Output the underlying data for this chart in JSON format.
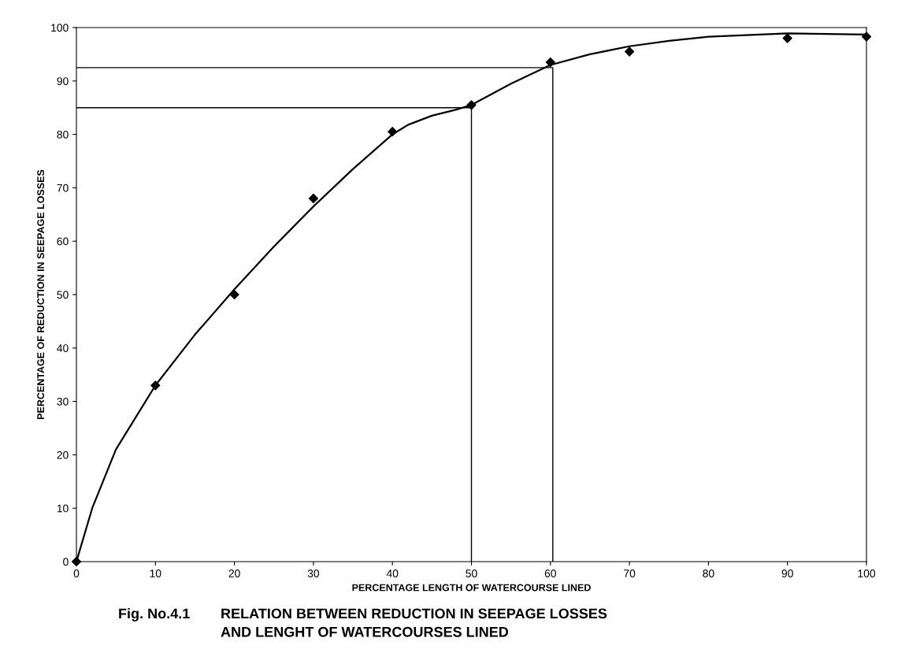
{
  "chart_data": {
    "type": "scatter",
    "title": "RELATION BETWEEN REDUCTION IN SEEPAGE LOSSES\nAND LENGHT OF WATERCOURSES LINED",
    "annotations": [
      "Fig. No.4.1"
    ],
    "xlabel": "PERCENTAGE LENGTH OF WATERCOURSE LINED",
    "ylabel": "PERCENTAGE OF REDUCTION IN SEEPAGE LOSSES",
    "x": [
      0,
      10,
      20,
      30,
      40,
      50,
      60,
      70,
      90,
      100
    ],
    "series": [
      {
        "color": "#000000",
        "marker": "diamond",
        "values": [
          0,
          33,
          50,
          68,
          80.5,
          85.5,
          93.5,
          95.5,
          98,
          98.3
        ]
      },
      {
        "type": "line",
        "color": "#000000",
        "marker": "none",
        "line_style": "solid",
        "x": [
          0,
          2,
          5,
          10,
          15,
          20,
          25,
          30,
          35,
          40,
          42,
          45,
          48,
          50,
          55,
          60,
          65,
          70,
          75,
          80,
          90,
          100
        ],
        "values": [
          0,
          10,
          21,
          33,
          42.5,
          51,
          59,
          66.5,
          73.5,
          80,
          81.8,
          83.5,
          84.6,
          85.5,
          89.5,
          93,
          95,
          96.5,
          97.5,
          98.3,
          98.9,
          98.7
        ]
      },
      {
        "type": "line",
        "color": "#000000",
        "marker": "none",
        "line_style": "solid",
        "x": [
          0,
          50,
          50
        ],
        "values": [
          85,
          85,
          0
        ]
      },
      {
        "type": "line",
        "color": "#000000",
        "marker": "none",
        "line_style": "solid",
        "x": [
          0,
          60.3,
          60.3
        ],
        "values": [
          92.5,
          92.5,
          0
        ]
      }
    ],
    "xlim": [
      0,
      100
    ],
    "ylim": [
      0,
      100
    ],
    "xticks": [
      0,
      10,
      20,
      30,
      40,
      50,
      60,
      70,
      80,
      90,
      100
    ],
    "yticks": [
      0,
      10,
      20,
      30,
      40,
      50,
      60,
      70,
      80,
      90,
      100
    ],
    "grid": false,
    "legend": false
  }
}
